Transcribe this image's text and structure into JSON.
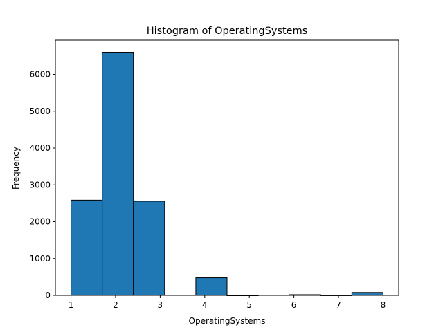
{
  "chart_data": {
    "type": "bar",
    "title": "Histogram of OperatingSystems",
    "xlabel": "OperatingSystems",
    "ylabel": "Frequency",
    "xlim": [
      0.65,
      8.35
    ],
    "ylim": [
      0,
      6930
    ],
    "bar_color": "#1f77b4",
    "edge_color": "#000000",
    "x_ticks": [
      1,
      2,
      3,
      4,
      5,
      6,
      7,
      8
    ],
    "y_ticks": [
      0,
      1000,
      2000,
      3000,
      4000,
      5000,
      6000
    ],
    "bins": [
      {
        "start": 1.0,
        "end": 1.7,
        "value": 2585
      },
      {
        "start": 1.7,
        "end": 2.4,
        "value": 6601
      },
      {
        "start": 2.4,
        "end": 3.1,
        "value": 2555
      },
      {
        "start": 3.1,
        "end": 3.8,
        "value": 0
      },
      {
        "start": 3.8,
        "end": 4.5,
        "value": 478
      },
      {
        "start": 4.5,
        "end": 5.2,
        "value": 6
      },
      {
        "start": 5.2,
        "end": 5.9,
        "value": 0
      },
      {
        "start": 5.9,
        "end": 6.6,
        "value": 19
      },
      {
        "start": 6.6,
        "end": 7.3,
        "value": 7
      },
      {
        "start": 7.3,
        "end": 8.0,
        "value": 79
      }
    ]
  }
}
